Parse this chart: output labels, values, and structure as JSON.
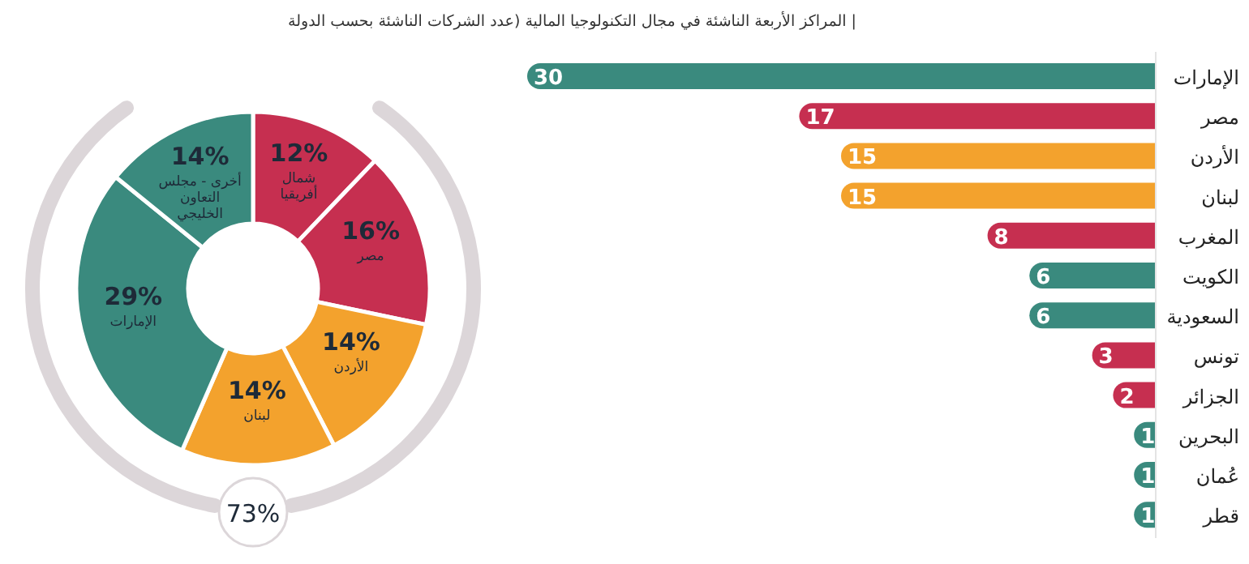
{
  "chart_data": [
    {
      "type": "donut",
      "categories": [
        "شمال أفريقيا",
        "مصر",
        "الأردن",
        "لبنان",
        "الإمارات",
        "أخرى - مجلس التعاون الخليجي"
      ],
      "values": [
        12,
        16,
        14,
        14,
        29,
        14
      ],
      "colors": [
        "#c62f50",
        "#c62f50",
        "#f3a22d",
        "#f3a22d",
        "#3a8a7e",
        "#3a8a7e"
      ],
      "value_labels": [
        "12%",
        "16%",
        "14%",
        "14%",
        "29%",
        "14%"
      ],
      "annotations": [
        "73%"
      ]
    },
    {
      "type": "bar",
      "orientation": "horizontal",
      "title": "| المراكز الأربعة الناشئة في مجال التكنولوجيا المالية (عدد الشركات الناشئة بحسب الدولة",
      "categories": [
        "الإمارات",
        "مصر",
        "الأردن",
        "لبنان",
        "المغرب",
        "الكويت",
        "السعودية",
        "تونس",
        "الجزائر",
        "البحرين",
        "عُمان",
        "قطر"
      ],
      "values": [
        30,
        17,
        15,
        15,
        8,
        6,
        6,
        3,
        2,
        1,
        1,
        1
      ],
      "colors": [
        "#3a8a7e",
        "#c62f50",
        "#f3a22d",
        "#f3a22d",
        "#c62f50",
        "#3a8a7e",
        "#3a8a7e",
        "#c62f50",
        "#c62f50",
        "#3a8a7e",
        "#3a8a7e",
        "#3a8a7e"
      ],
      "data_labels": true
    }
  ]
}
